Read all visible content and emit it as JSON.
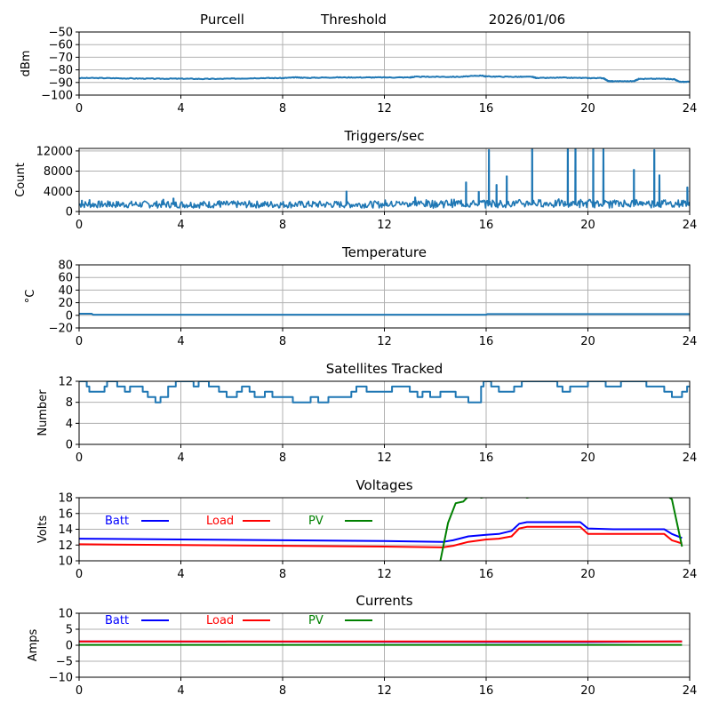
{
  "header": {
    "site": "Purcell",
    "mode": "Threshold",
    "date": "2026/01/06"
  },
  "chart_data": [
    {
      "type": "line",
      "title": "",
      "xlabel": "",
      "ylabel": "dBm",
      "xlim": [
        0,
        24
      ],
      "ylim": [
        -100,
        -50
      ],
      "grid": true,
      "xticks": [
        "0",
        "4",
        "8",
        "12",
        "16",
        "20",
        "24"
      ],
      "yticks": [
        "−50",
        "−60",
        "−70",
        "−80",
        "−90",
        "−100"
      ],
      "ytick_values": [
        -50,
        -60,
        -70,
        -80,
        -90,
        -100
      ],
      "series": [
        {
          "name": "Threshold",
          "color": "#1f77b4",
          "x": [
            0,
            1,
            2,
            3,
            4,
            5,
            6,
            7,
            8,
            8.5,
            9,
            10,
            11,
            12,
            13,
            13.2,
            14,
            15,
            15.8,
            16,
            17,
            17.8,
            18,
            19,
            20,
            20.6,
            20.8,
            21,
            21.8,
            22,
            23,
            23.4,
            23.6,
            24
          ],
          "y": [
            -86.5,
            -86.5,
            -86.8,
            -87,
            -87,
            -87.2,
            -87,
            -86.5,
            -86.5,
            -86,
            -86.3,
            -86,
            -86,
            -86,
            -86,
            -85.5,
            -85.5,
            -85.5,
            -84.5,
            -85.2,
            -85.5,
            -85.5,
            -86.5,
            -86.2,
            -86.5,
            -86.5,
            -89,
            -89,
            -89,
            -87.2,
            -87,
            -87.5,
            -89.5,
            -89.5
          ]
        }
      ]
    },
    {
      "type": "line",
      "title": "Triggers/sec",
      "xlabel": "",
      "ylabel": "Count",
      "xlim": [
        0,
        24
      ],
      "ylim": [
        0,
        12500
      ],
      "grid": true,
      "xticks": [
        "0",
        "4",
        "8",
        "12",
        "16",
        "20",
        "24"
      ],
      "yticks": [
        "12000",
        "8000",
        "4000",
        "0"
      ],
      "ytick_values": [
        12000,
        8000,
        4000,
        0
      ],
      "series": [
        {
          "name": "Triggers",
          "color": "#1f77b4",
          "spikes": [
            [
              0.1,
              2200
            ],
            [
              0.4,
              2300
            ],
            [
              1.2,
              1900
            ],
            [
              3.3,
              2400
            ],
            [
              3.7,
              2600
            ],
            [
              5.5,
              2100
            ],
            [
              10.5,
              4000
            ],
            [
              13.2,
              2800
            ],
            [
              15.2,
              5800
            ],
            [
              15.7,
              3900
            ],
            [
              16.1,
              12200
            ],
            [
              16.4,
              5300
            ],
            [
              16.8,
              7000
            ],
            [
              17.8,
              12500
            ],
            [
              19.2,
              12500
            ],
            [
              19.5,
              12500
            ],
            [
              20.2,
              12500
            ],
            [
              20.6,
              12500
            ],
            [
              21.8,
              8300
            ],
            [
              22.6,
              12200
            ],
            [
              22.8,
              7200
            ],
            [
              23.9,
              4800
            ]
          ],
          "baseline": 1400
        }
      ]
    },
    {
      "type": "line",
      "title": "Temperature",
      "xlabel": "",
      "ylabel": "°C",
      "xlim": [
        0,
        24
      ],
      "ylim": [
        -20,
        80
      ],
      "grid": true,
      "xticks": [
        "0",
        "4",
        "8",
        "12",
        "16",
        "20",
        "24"
      ],
      "yticks": [
        "80",
        "60",
        "40",
        "20",
        "0",
        "−20"
      ],
      "ytick_values": [
        80,
        60,
        40,
        20,
        0,
        -20
      ],
      "series": [
        {
          "name": "Temperature",
          "color": "#1f77b4",
          "x": [
            0,
            0.5,
            0.55,
            16,
            16.05,
            24
          ],
          "y": [
            2.5,
            2.5,
            1,
            1,
            2,
            2
          ]
        }
      ]
    },
    {
      "type": "line",
      "title": "Satellites Tracked",
      "xlabel": "",
      "ylabel": "Number",
      "xlim": [
        0,
        24
      ],
      "ylim": [
        0,
        12
      ],
      "grid": true,
      "xticks": [
        "0",
        "4",
        "8",
        "12",
        "16",
        "20",
        "24"
      ],
      "yticks": [
        "12",
        "8",
        "4",
        "0"
      ],
      "ytick_values": [
        12,
        8,
        4,
        0
      ],
      "series": [
        {
          "name": "Satellites",
          "color": "#1f77b4",
          "step": true,
          "x": [
            0,
            0.3,
            0.4,
            0.6,
            1.0,
            1.1,
            1.5,
            1.6,
            1.8,
            2.0,
            2.5,
            2.7,
            3.0,
            3.2,
            3.5,
            3.8,
            4.5,
            4.7,
            5.1,
            5.5,
            5.8,
            6.2,
            6.4,
            6.7,
            6.9,
            7.3,
            7.6,
            8.4,
            8.8,
            9.1,
            9.4,
            9.8,
            10.0,
            10.7,
            10.9,
            11.3,
            12.0,
            12.3,
            12.5,
            13.0,
            13.3,
            13.5,
            13.8,
            14.2,
            14.8,
            15.3,
            15.8,
            15.9,
            16.2,
            16.5,
            16.8,
            17.1,
            17.4,
            17.7,
            18.5,
            18.8,
            19.0,
            19.3,
            20.0,
            20.7,
            21.0,
            21.3,
            22.0,
            22.3,
            22.6,
            23.0,
            23.3,
            23.7,
            23.9
          ],
          "y": [
            12,
            11,
            10,
            10,
            11,
            12,
            11,
            11,
            10,
            11,
            10,
            9,
            8,
            9,
            11,
            12,
            11,
            12,
            11,
            10,
            9,
            10,
            11,
            10,
            9,
            10,
            9,
            8,
            8,
            9,
            8,
            9,
            9,
            10,
            11,
            10,
            10,
            11,
            11,
            10,
            9,
            10,
            9,
            10,
            9,
            8,
            11,
            12,
            11,
            10,
            10,
            11,
            12,
            12,
            12,
            11,
            10,
            11,
            12,
            11,
            11,
            12,
            12,
            11,
            11,
            10,
            9,
            10,
            11
          ]
        }
      ]
    },
    {
      "type": "line",
      "title": "Voltages",
      "xlabel": "",
      "ylabel": "Volts",
      "xlim": [
        0,
        24
      ],
      "ylim": [
        10,
        18
      ],
      "grid": true,
      "xticks": [
        "0",
        "4",
        "8",
        "12",
        "16",
        "20",
        "24"
      ],
      "yticks": [
        "18",
        "16",
        "14",
        "12",
        "10"
      ],
      "ytick_values": [
        18,
        16,
        14,
        12,
        10
      ],
      "legend": {
        "placement": "top-left",
        "entries": [
          {
            "name": "Batt",
            "color": "#0000ff"
          },
          {
            "name": "Load",
            "color": "#ff0000"
          },
          {
            "name": "PV",
            "color": "#008000"
          }
        ]
      },
      "series": [
        {
          "name": "Batt",
          "color": "#0000ff",
          "x": [
            0,
            4,
            8,
            12,
            14.3,
            14.7,
            15.3,
            16,
            16.5,
            17,
            17.3,
            17.6,
            18,
            19,
            19.7,
            20,
            21,
            22,
            23,
            23.3,
            23.7
          ],
          "y": [
            12.8,
            12.7,
            12.6,
            12.5,
            12.4,
            12.6,
            13.1,
            13.3,
            13.4,
            13.8,
            14.7,
            14.9,
            14.9,
            14.9,
            14.9,
            14.1,
            14.0,
            14.0,
            14.0,
            13.4,
            12.9
          ]
        },
        {
          "name": "Load",
          "color": "#ff0000",
          "x": [
            0,
            4,
            8,
            12,
            14.3,
            14.7,
            15.3,
            16,
            16.5,
            17,
            17.3,
            17.6,
            18,
            19,
            19.7,
            20,
            21,
            22,
            23,
            23.3,
            23.7
          ],
          "y": [
            12.1,
            12.0,
            11.9,
            11.8,
            11.7,
            11.9,
            12.4,
            12.7,
            12.8,
            13.1,
            14.1,
            14.3,
            14.3,
            14.3,
            14.3,
            13.4,
            13.4,
            13.4,
            13.4,
            12.6,
            12.2
          ]
        },
        {
          "name": "PV",
          "color": "#008000",
          "x": [
            14.2,
            14.5,
            14.8,
            15.1,
            15.4,
            15.8,
            16.5,
            17,
            17.3,
            17.6,
            18.5,
            19.5,
            20.5,
            21.5,
            22.5,
            23.0,
            23.3,
            23.7
          ],
          "y": [
            10.0,
            14.8,
            17.3,
            17.5,
            18.5,
            18.0,
            18.4,
            18.1,
            18.4,
            18.0,
            18.5,
            18.3,
            18.5,
            18.4,
            18.5,
            18.5,
            17.8,
            11.8
          ]
        }
      ]
    },
    {
      "type": "line",
      "title": "Currents",
      "xlabel": "",
      "ylabel": "Amps",
      "xlim": [
        0,
        24
      ],
      "ylim": [
        -10,
        10
      ],
      "grid": true,
      "xticks": [
        "0",
        "4",
        "8",
        "12",
        "16",
        "20",
        "24"
      ],
      "yticks": [
        "10",
        "5",
        "0",
        "−5",
        "−10"
      ],
      "ytick_values": [
        10,
        5,
        0,
        -5,
        -10
      ],
      "legend": {
        "placement": "top-left",
        "entries": [
          {
            "name": "Batt",
            "color": "#0000ff"
          },
          {
            "name": "Load",
            "color": "#ff0000"
          },
          {
            "name": "PV",
            "color": "#008000"
          }
        ]
      },
      "series": [
        {
          "name": "Batt",
          "color": "#0000ff",
          "x": [
            0,
            17,
            20,
            23.7
          ],
          "y": [
            1.2,
            1.0,
            1.0,
            1.2
          ]
        },
        {
          "name": "Load",
          "color": "#ff0000",
          "x": [
            0,
            17,
            20,
            23.7
          ],
          "y": [
            1.2,
            1.2,
            1.2,
            1.2
          ]
        },
        {
          "name": "PV",
          "color": "#008000",
          "x": [
            0,
            23.7
          ],
          "y": [
            0.1,
            0.1
          ]
        }
      ]
    }
  ]
}
